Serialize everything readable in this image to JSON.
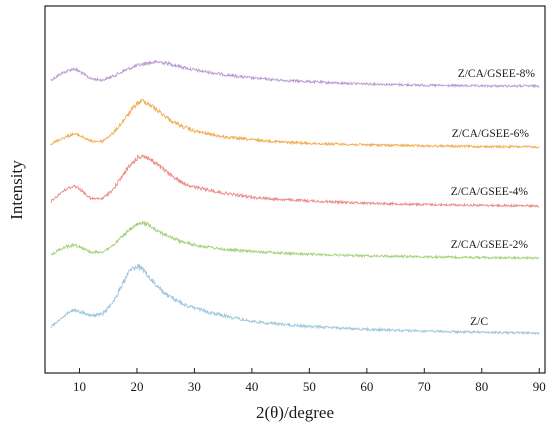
{
  "chart_data": {
    "type": "line",
    "xlabel": "2(θ)/degree",
    "ylabel": "Intensity",
    "xlim": [
      4,
      91
    ],
    "x_ticks": [
      10,
      20,
      30,
      40,
      50,
      60,
      70,
      80,
      90
    ],
    "y_ticks_shown": false,
    "series": [
      {
        "name": "Z/CA/GSEE-8%",
        "color": "#b79ad2",
        "x": [
          5,
          7,
          9,
          10,
          12,
          14,
          16,
          18,
          20,
          22,
          24,
          26,
          28,
          30,
          35,
          40,
          45,
          50,
          55,
          60,
          70,
          80,
          90
        ],
        "y": [
          0.04,
          0.09,
          0.12,
          0.1,
          0.05,
          0.04,
          0.07,
          0.11,
          0.14,
          0.16,
          0.165,
          0.15,
          0.13,
          0.11,
          0.08,
          0.055,
          0.04,
          0.03,
          0.02,
          0.015,
          0.005,
          0.0,
          0.0
        ]
      },
      {
        "name": "Z/CA/GSEE-6%",
        "color": "#f2ab4e",
        "x": [
          5,
          7,
          9,
          10,
          12,
          14,
          16,
          18,
          20,
          21,
          22,
          24,
          26,
          28,
          30,
          35,
          40,
          45,
          50,
          60,
          70,
          80,
          90
        ],
        "y": [
          0.02,
          0.06,
          0.09,
          0.08,
          0.04,
          0.04,
          0.1,
          0.2,
          0.3,
          0.32,
          0.3,
          0.24,
          0.18,
          0.14,
          0.11,
          0.07,
          0.05,
          0.035,
          0.025,
          0.015,
          0.008,
          0.003,
          0.0
        ]
      },
      {
        "name": "Z/CA/GSEE-4%",
        "color": "#ec8a86",
        "x": [
          5,
          7,
          9,
          10,
          12,
          14,
          16,
          18,
          20,
          21,
          22,
          24,
          26,
          28,
          30,
          35,
          40,
          45,
          50,
          60,
          70,
          80,
          90
        ],
        "y": [
          0.03,
          0.1,
          0.14,
          0.12,
          0.05,
          0.05,
          0.12,
          0.24,
          0.33,
          0.35,
          0.33,
          0.27,
          0.21,
          0.16,
          0.13,
          0.09,
          0.06,
          0.045,
          0.035,
          0.02,
          0.01,
          0.005,
          0.0
        ]
      },
      {
        "name": "Z/CA/GSEE-2%",
        "color": "#a3d27a",
        "x": [
          5,
          7,
          9,
          10,
          12,
          14,
          16,
          18,
          20,
          21,
          22,
          24,
          26,
          28,
          30,
          35,
          40,
          45,
          50,
          60,
          70,
          80,
          90
        ],
        "y": [
          0.02,
          0.07,
          0.09,
          0.08,
          0.04,
          0.04,
          0.09,
          0.17,
          0.23,
          0.24,
          0.23,
          0.18,
          0.14,
          0.11,
          0.09,
          0.06,
          0.045,
          0.035,
          0.025,
          0.015,
          0.008,
          0.003,
          0.0
        ]
      },
      {
        "name": "Z/C",
        "color": "#9cc6de",
        "x": [
          5,
          7,
          9,
          10,
          12,
          14,
          16,
          18,
          19,
          20,
          21,
          22,
          24,
          26,
          28,
          30,
          35,
          40,
          45,
          50,
          60,
          70,
          80,
          90
        ],
        "y": [
          0.04,
          0.11,
          0.16,
          0.15,
          0.12,
          0.13,
          0.22,
          0.38,
          0.44,
          0.46,
          0.44,
          0.39,
          0.3,
          0.24,
          0.2,
          0.17,
          0.12,
          0.08,
          0.06,
          0.045,
          0.025,
          0.012,
          0.005,
          0.0
        ]
      }
    ]
  }
}
